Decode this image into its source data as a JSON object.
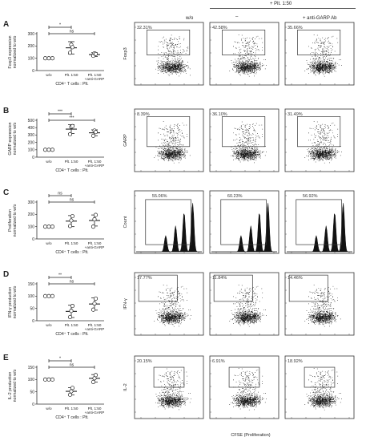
{
  "header": {
    "wo": "w/o",
    "plt": "+ Plt. 1:50",
    "dash": "–",
    "anti": "+ anti-GARP Ab"
  },
  "xcategories": [
    "w/o",
    "Plt. 1:50",
    "Plt. 1:50"
  ],
  "xcategory_extra": "+anti-GARP",
  "x_group_label": "CD4⁺ T cells : Plt.",
  "flow_x_label": "CFSE (Proliferation)",
  "panels": [
    {
      "letter": "A",
      "ylabel": [
        "Foxp3 expression",
        "normalized to w/o"
      ],
      "ylim": [
        0,
        300
      ],
      "yticks": [
        0,
        100,
        200,
        300
      ],
      "means": [
        100,
        185,
        130
      ],
      "errors": [
        0,
        50,
        15
      ],
      "points": [
        [
          100,
          100,
          100
        ],
        [
          145,
          210,
          190
        ],
        [
          120,
          140,
          135
        ]
      ],
      "sig": [
        {
          "label": "*",
          "from": 0,
          "to": 1
        },
        {
          "label": "ns",
          "from": 0,
          "to": 2
        }
      ],
      "flow_ylabel": "Foxp3",
      "flow_type": "dot",
      "flow_pct": [
        "32.31%",
        "42.58%",
        "35.66%"
      ]
    },
    {
      "letter": "B",
      "ylabel": [
        "GARP expression",
        "normalized to w/o"
      ],
      "ylim": [
        0,
        500
      ],
      "yticks": [
        0,
        100,
        200,
        300,
        400,
        500
      ],
      "means": [
        100,
        380,
        330
      ],
      "errors": [
        0,
        60,
        40
      ],
      "points": [
        [
          100,
          100,
          100
        ],
        [
          310,
          410,
          420
        ],
        [
          290,
          360,
          340
        ]
      ],
      "sig": [
        {
          "label": "***",
          "from": 0,
          "to": 1
        },
        {
          "label": "***",
          "from": 0,
          "to": 2
        }
      ],
      "flow_ylabel": "GARP",
      "flow_type": "dot",
      "flow_pct": [
        "8.39%",
        "36.10%",
        "31.49%"
      ]
    },
    {
      "letter": "C",
      "ylabel": [
        "Proliferation",
        "normalized to w/o"
      ],
      "ylim": [
        0,
        300
      ],
      "yticks": [
        0,
        100,
        200,
        300
      ],
      "means": [
        100,
        145,
        150
      ],
      "errors": [
        0,
        45,
        45
      ],
      "points": [
        [
          100,
          100,
          100
        ],
        [
          105,
          150,
          185
        ],
        [
          100,
          160,
          195
        ]
      ],
      "sig": [
        {
          "label": "ns",
          "from": 0,
          "to": 1
        },
        {
          "label": "ns",
          "from": 0,
          "to": 2
        }
      ],
      "flow_ylabel": "Count",
      "flow_type": "hist",
      "flow_pct": [
        "55.06%",
        "60.23%",
        "56.92%"
      ]
    },
    {
      "letter": "D",
      "ylabel": [
        "IFN-γ production",
        "normalized to w/o"
      ],
      "ylim": [
        0,
        150
      ],
      "yticks": [
        0,
        50,
        100,
        150
      ],
      "means": [
        100,
        38,
        68
      ],
      "errors": [
        0,
        25,
        25
      ],
      "points": [
        [
          100,
          100,
          100
        ],
        [
          15,
          40,
          60
        ],
        [
          45,
          70,
          90
        ]
      ],
      "sig": [
        {
          "label": "**",
          "from": 0,
          "to": 1
        },
        {
          "label": "ns",
          "from": 0,
          "to": 2
        }
      ],
      "flow_ylabel": "IFN-γ",
      "flow_type": "dot",
      "flow_pct": [
        "17.77%",
        "11.84%",
        "14.46%"
      ]
    },
    {
      "letter": "E",
      "ylabel": [
        "IL-2 production",
        "normalized to w/o"
      ],
      "ylim": [
        0,
        150
      ],
      "yticks": [
        0,
        50,
        100,
        150
      ],
      "means": [
        100,
        52,
        105
      ],
      "errors": [
        0,
        15,
        15
      ],
      "points": [
        [
          100,
          100,
          100
        ],
        [
          38,
          52,
          66
        ],
        [
          90,
          105,
          118
        ]
      ],
      "sig": [
        {
          "label": "*",
          "from": 0,
          "to": 1
        },
        {
          "label": "ns",
          "from": 0,
          "to": 2
        }
      ],
      "flow_ylabel": "IL-2",
      "flow_type": "dot",
      "flow_pct": [
        "20.15%",
        "6.91%",
        "18.92%"
      ]
    }
  ]
}
